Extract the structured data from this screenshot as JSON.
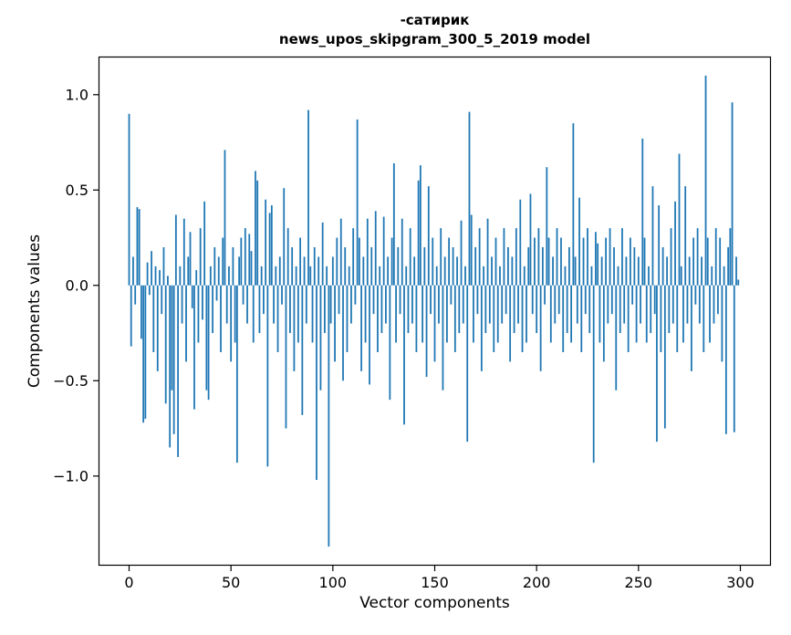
{
  "figure": {
    "title_line1": "-сатирик",
    "title_line2": "news_upos_skipgram_300_5_2019 model",
    "xlabel": "Vector components",
    "ylabel": "Components values"
  },
  "chart_data": {
    "type": "bar",
    "title": "-сатирик\nnews_upos_skipgram_300_5_2019 model",
    "xlabel": "Vector components",
    "ylabel": "Components values",
    "bar_color": "#1f77b4",
    "frame_color": "#000000",
    "grid": false,
    "legend": "none",
    "xlim": [
      -15,
      315
    ],
    "ylim": [
      -1.47,
      1.2
    ],
    "xticks": [
      0,
      50,
      100,
      150,
      200,
      250,
      300
    ],
    "xtick_labels": [
      "0",
      "50",
      "100",
      "150",
      "200",
      "250",
      "300"
    ],
    "yticks": [
      1.0,
      0.5,
      0.0,
      -0.5,
      -1.0
    ],
    "ytick_labels": [
      "1.0",
      "0.5",
      "0.0",
      "−0.5",
      "−1.0"
    ],
    "x_start": 0,
    "values": [
      0.9,
      -0.32,
      0.15,
      -0.1,
      0.41,
      0.4,
      -0.28,
      -0.72,
      -0.7,
      0.12,
      -0.05,
      0.18,
      -0.35,
      0.1,
      -0.45,
      0.08,
      -0.15,
      0.2,
      -0.62,
      0.05,
      -0.85,
      -0.55,
      -0.78,
      0.37,
      -0.9,
      0.1,
      -0.2,
      0.35,
      -0.4,
      0.15,
      0.28,
      -0.12,
      -0.65,
      0.08,
      -0.3,
      0.3,
      -0.18,
      0.44,
      -0.55,
      -0.6,
      0.1,
      -0.25,
      0.2,
      -0.08,
      0.15,
      -0.35,
      0.25,
      0.71,
      -0.2,
      0.1,
      -0.4,
      0.2,
      -0.3,
      -0.93,
      0.15,
      0.25,
      -0.1,
      0.3,
      -0.2,
      0.27,
      0.18,
      -0.3,
      0.6,
      0.55,
      -0.25,
      0.1,
      -0.15,
      0.45,
      -0.95,
      0.38,
      0.42,
      -0.2,
      0.1,
      -0.35,
      0.15,
      -0.1,
      0.51,
      -0.75,
      0.3,
      -0.25,
      0.2,
      -0.45,
      0.1,
      -0.3,
      0.25,
      -0.68,
      0.15,
      -0.2,
      0.92,
      0.1,
      -0.3,
      0.2,
      -1.02,
      0.15,
      -0.55,
      0.33,
      -0.25,
      0.1,
      -1.37,
      -0.2,
      0.15,
      -0.4,
      0.25,
      -0.15,
      0.35,
      -0.5,
      0.2,
      -0.35,
      0.1,
      -0.2,
      0.3,
      -0.1,
      0.87,
      0.25,
      -0.45,
      0.15,
      -0.3,
      0.35,
      -0.52,
      0.2,
      -0.15,
      0.39,
      -0.35,
      0.1,
      -0.25,
      0.36,
      -0.2,
      0.15,
      -0.6,
      0.25,
      0.64,
      -0.3,
      0.2,
      -0.15,
      0.35,
      -0.73,
      0.1,
      -0.25,
      0.3,
      -0.2,
      0.15,
      -0.35,
      0.55,
      0.63,
      -0.3,
      0.2,
      -0.48,
      0.52,
      -0.15,
      0.25,
      -0.4,
      0.1,
      -0.2,
      0.3,
      -0.55,
      0.15,
      -0.3,
      0.25,
      -0.1,
      0.2,
      -0.35,
      0.15,
      -0.25,
      0.34,
      -0.2,
      0.1,
      -0.82,
      0.91,
      0.37,
      -0.3,
      0.2,
      -0.15,
      0.3,
      -0.45,
      0.1,
      -0.25,
      0.35,
      -0.2,
      0.15,
      -0.35,
      0.25,
      -0.3,
      0.1,
      -0.2,
      0.3,
      -0.15,
      0.2,
      -0.4,
      0.15,
      -0.25,
      0.3,
      -0.2,
      0.45,
      -0.35,
      0.1,
      -0.3,
      0.2,
      0.48,
      -0.15,
      0.25,
      -0.25,
      0.3,
      -0.45,
      0.2,
      -0.1,
      0.62,
      0.25,
      -0.3,
      0.15,
      -0.2,
      0.3,
      -0.15,
      0.25,
      -0.35,
      0.1,
      -0.25,
      0.2,
      -0.3,
      0.85,
      0.15,
      -0.2,
      0.46,
      -0.35,
      0.25,
      -0.15,
      0.3,
      -0.25,
      0.1,
      -0.93,
      0.28,
      0.22,
      -0.3,
      0.15,
      -0.4,
      0.25,
      -0.2,
      0.3,
      -0.15,
      0.2,
      -0.55,
      0.1,
      -0.25,
      0.3,
      -0.2,
      0.15,
      -0.35,
      0.25,
      -0.1,
      0.2,
      -0.3,
      0.15,
      -0.2,
      0.77,
      0.25,
      -0.3,
      0.1,
      -0.25,
      0.52,
      -0.15,
      -0.82,
      0.42,
      -0.35,
      0.2,
      -0.75,
      0.15,
      -0.25,
      0.3,
      -0.2,
      0.44,
      -0.35,
      0.69,
      0.1,
      -0.3,
      0.52,
      -0.2,
      0.15,
      -0.45,
      0.25,
      -0.1,
      0.3,
      -0.2,
      0.15,
      -0.35,
      1.1,
      0.25,
      -0.3,
      0.1,
      -0.2,
      0.3,
      -0.15,
      0.25,
      -0.4,
      0.1,
      -0.78,
      0.2,
      0.3,
      0.96,
      -0.77,
      0.15,
      0.03
    ]
  }
}
